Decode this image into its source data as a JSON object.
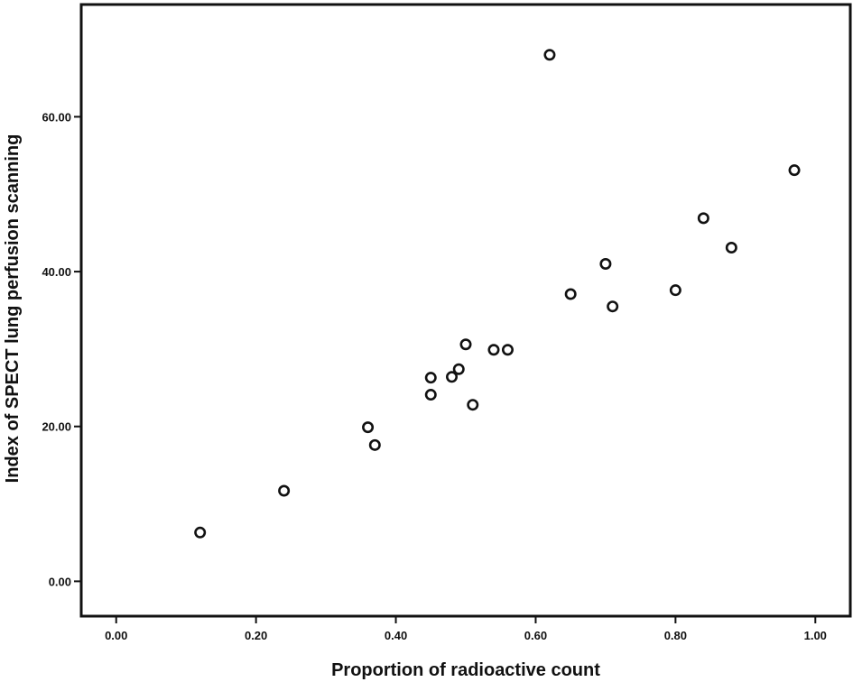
{
  "chart_data": {
    "type": "scatter",
    "title": "",
    "xlabel": "Proportion of radioactive count",
    "ylabel": "Index of SPECT lung perfusion scanning",
    "xlim": [
      -0.05,
      1.05
    ],
    "ylim": [
      -4.5,
      74.5
    ],
    "x_ticks": [
      0.0,
      0.2,
      0.4,
      0.6,
      0.8,
      1.0
    ],
    "x_tick_labels": [
      "0.00",
      "0.20",
      "0.40",
      "0.60",
      "0.80",
      "1.00"
    ],
    "y_ticks": [
      0,
      20,
      40,
      60
    ],
    "y_tick_labels": [
      "0.00",
      "20.00",
      "40.00",
      "60.00"
    ],
    "grid": false,
    "marker": "open-circle",
    "marker_color": "#111111",
    "points": [
      {
        "x": 0.12,
        "y": 6.3
      },
      {
        "x": 0.24,
        "y": 11.7
      },
      {
        "x": 0.36,
        "y": 19.9
      },
      {
        "x": 0.37,
        "y": 17.6
      },
      {
        "x": 0.45,
        "y": 26.3
      },
      {
        "x": 0.45,
        "y": 24.1
      },
      {
        "x": 0.48,
        "y": 26.4
      },
      {
        "x": 0.49,
        "y": 27.4
      },
      {
        "x": 0.5,
        "y": 30.6
      },
      {
        "x": 0.51,
        "y": 22.8
      },
      {
        "x": 0.54,
        "y": 29.9
      },
      {
        "x": 0.56,
        "y": 29.9
      },
      {
        "x": 0.62,
        "y": 68.0
      },
      {
        "x": 0.65,
        "y": 37.1
      },
      {
        "x": 0.7,
        "y": 41.0
      },
      {
        "x": 0.71,
        "y": 35.5
      },
      {
        "x": 0.8,
        "y": 37.6
      },
      {
        "x": 0.84,
        "y": 46.9
      },
      {
        "x": 0.88,
        "y": 43.1
      },
      {
        "x": 0.97,
        "y": 53.1
      }
    ]
  }
}
